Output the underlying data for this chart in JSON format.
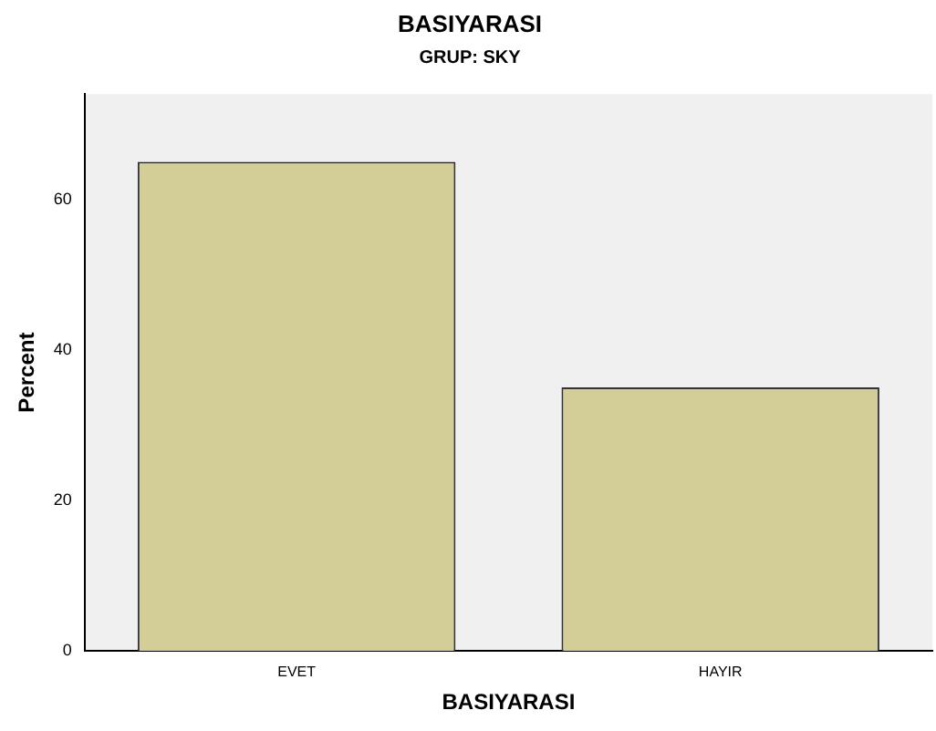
{
  "chart_data": {
    "type": "bar",
    "title": "BASIYARASI",
    "subtitle": "GRUP: SKY",
    "xlabel": "BASIYARASI",
    "ylabel": "Percent",
    "categories": [
      "EVET",
      "HAYIR"
    ],
    "values": [
      65,
      35
    ],
    "color": "#d3ce98",
    "ylim": [
      0,
      74
    ],
    "yticks": [
      0,
      20,
      40,
      60
    ],
    "grid": false,
    "legend": false
  }
}
